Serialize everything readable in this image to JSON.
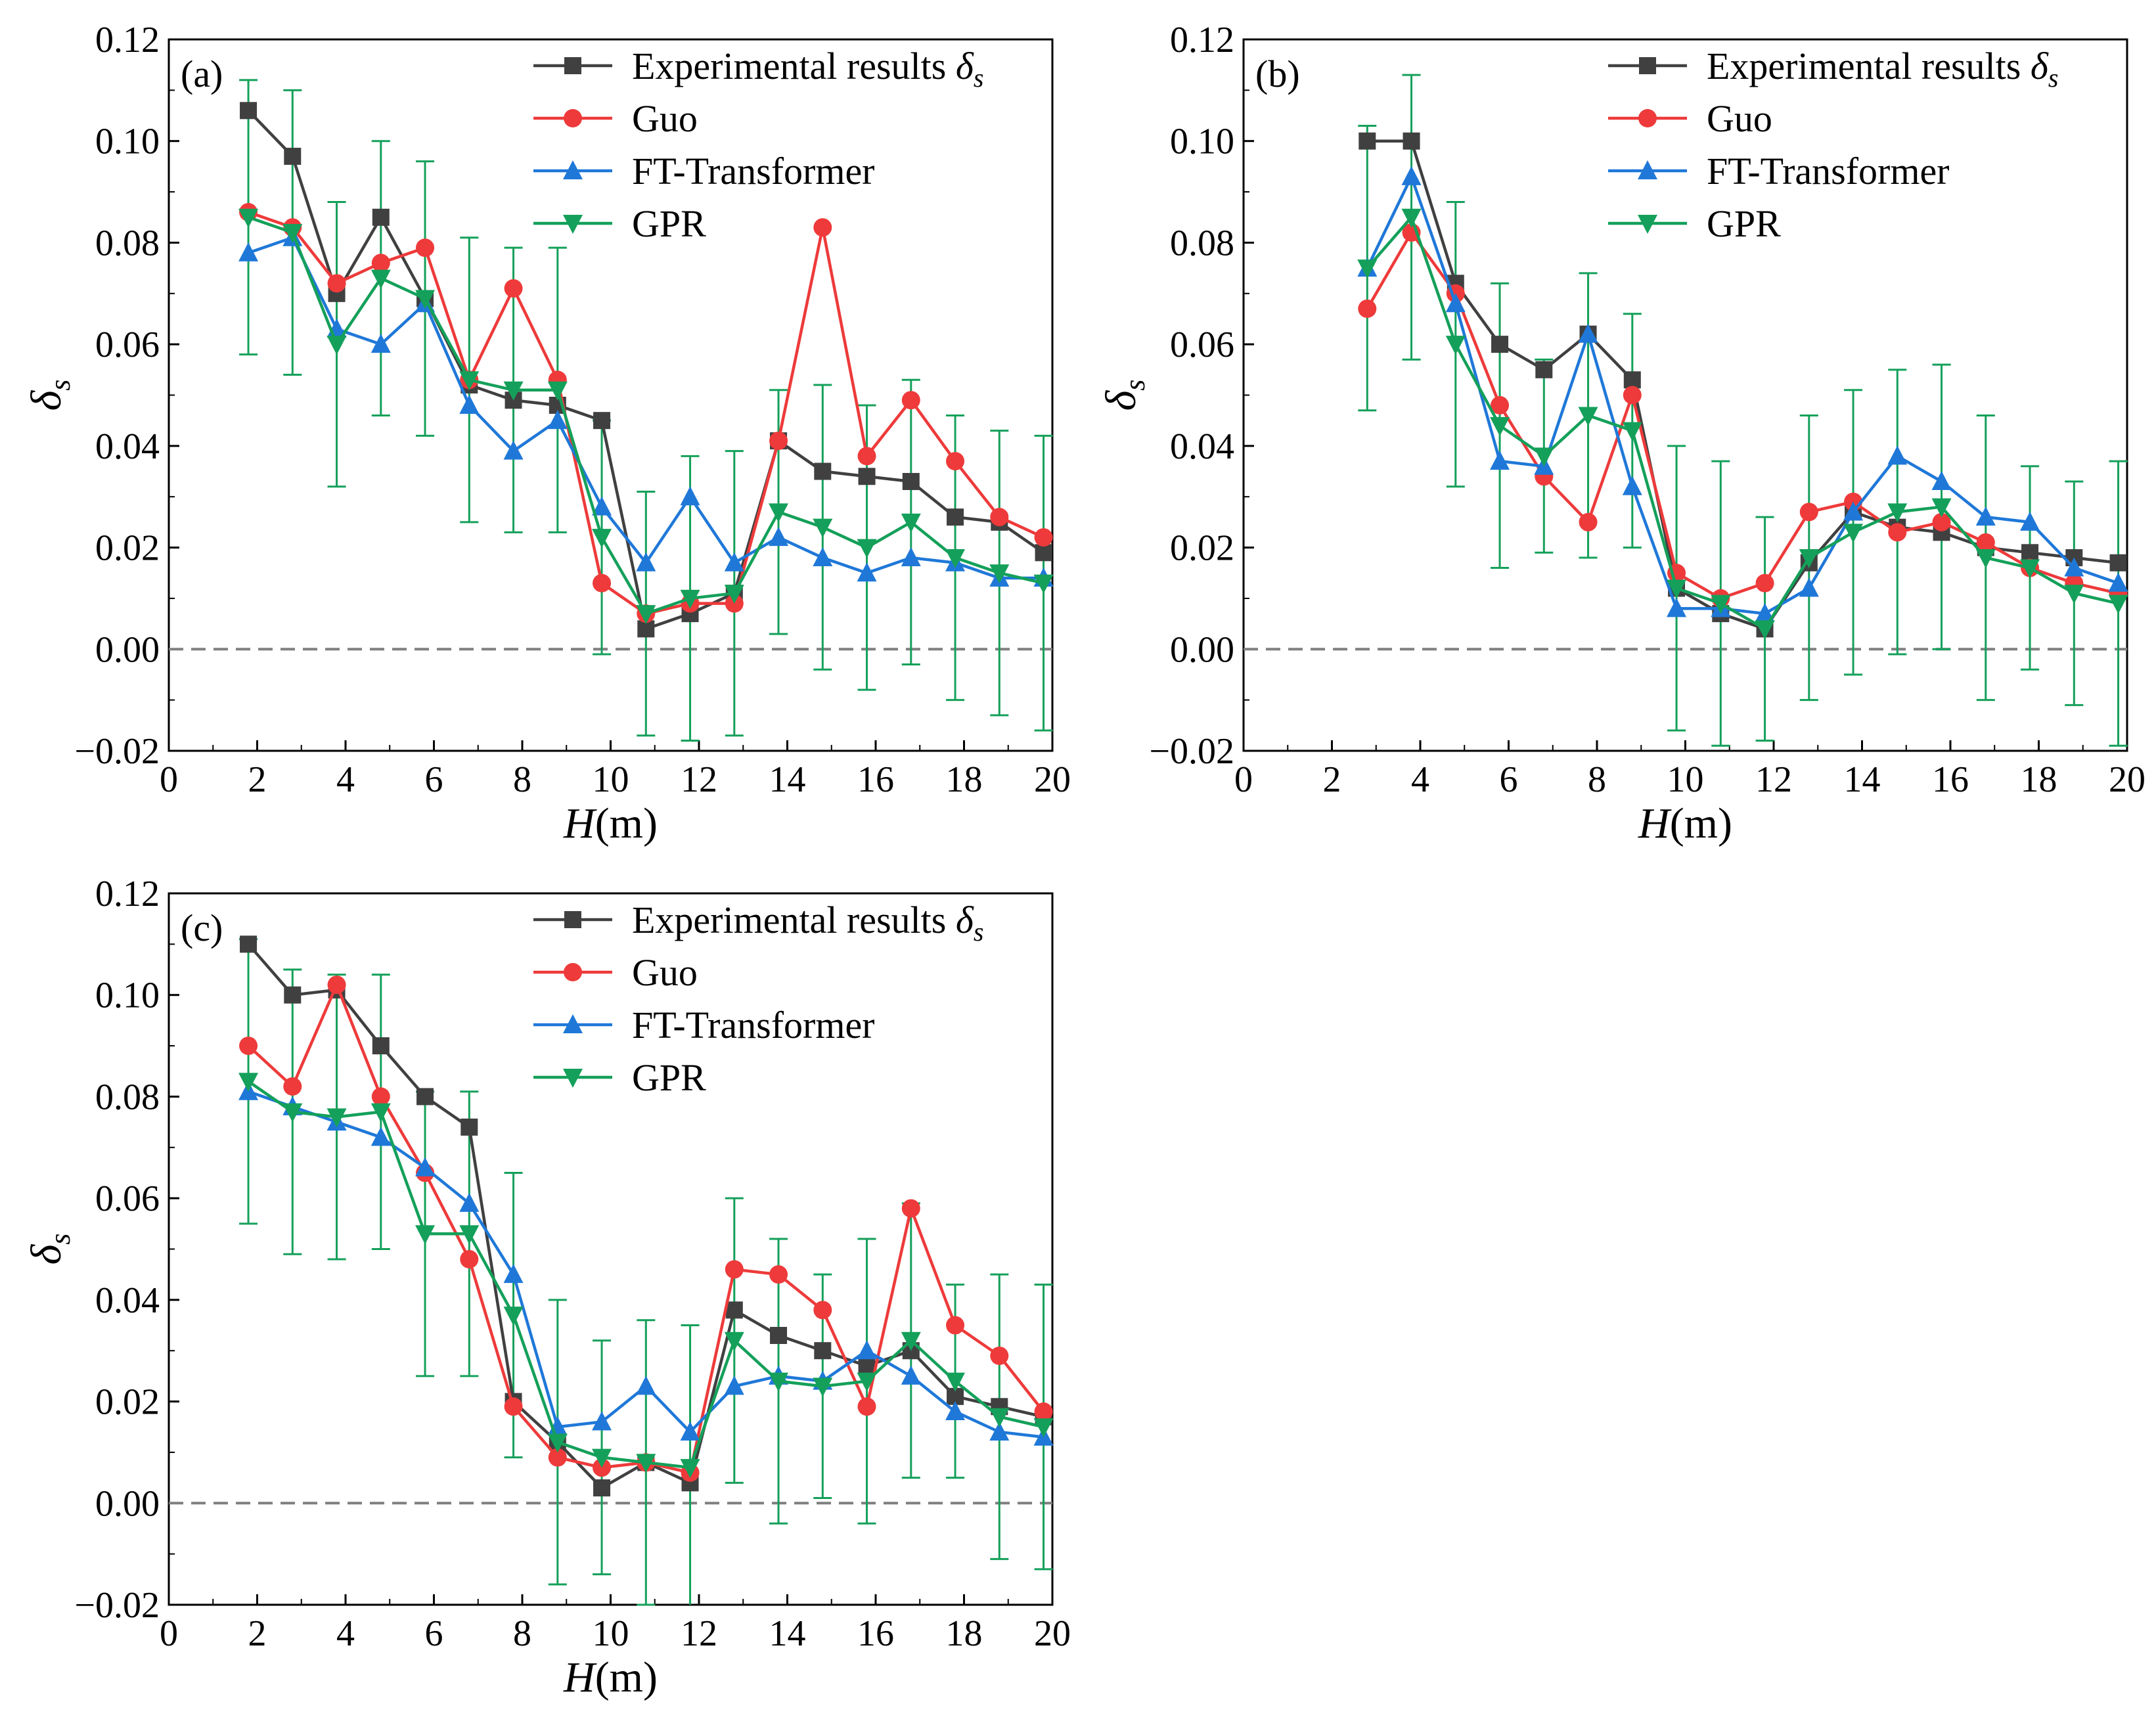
{
  "colors": {
    "Experimental results": "#404040",
    "Guo": "#ee3a3a",
    "FT-Transformer": "#1f78d8",
    "GPR": "#14a05a",
    "zero_line": "#808080"
  },
  "chart_data": [
    {
      "type": "line",
      "panel_label": "(a)",
      "xlabel_italic": "H",
      "xlabel_unit": "(m)",
      "ylabel": "δs",
      "xlim": [
        0,
        20
      ],
      "ylim": [
        -0.02,
        0.12
      ],
      "xticks": [
        "0",
        "2",
        "4",
        "6",
        "8",
        "10",
        "12",
        "14",
        "16",
        "18",
        "20"
      ],
      "yticks": [
        "−0.02",
        "0.00",
        "0.02",
        "0.04",
        "0.06",
        "0.08",
        "0.10",
        "0.12"
      ],
      "x": [
        1.8,
        2.8,
        3.8,
        4.8,
        5.8,
        6.8,
        7.8,
        8.8,
        9.8,
        10.8,
        11.8,
        12.8,
        13.8,
        14.8,
        15.8,
        16.8,
        17.8,
        18.8,
        19.8
      ],
      "series": [
        {
          "name": "Experimental results δs",
          "values": [
            0.106,
            0.097,
            0.07,
            0.085,
            0.069,
            0.052,
            0.049,
            0.048,
            0.045,
            0.004,
            0.007,
            0.011,
            0.041,
            0.035,
            0.034,
            0.033,
            0.026,
            0.025,
            0.019
          ]
        },
        {
          "name": "Guo",
          "values": [
            0.086,
            0.083,
            0.072,
            0.076,
            0.079,
            0.053,
            0.071,
            0.053,
            0.013,
            0.007,
            0.009,
            0.009,
            0.041,
            0.083,
            0.038,
            0.049,
            0.037,
            0.026,
            0.022
          ]
        },
        {
          "name": "FT-Transformer",
          "values": [
            0.078,
            0.081,
            0.063,
            0.06,
            0.068,
            0.048,
            0.039,
            0.045,
            0.028,
            0.017,
            0.03,
            0.017,
            0.022,
            0.018,
            0.015,
            0.018,
            0.017,
            0.014,
            0.014
          ]
        },
        {
          "name": "GPR",
          "values": [
            0.085,
            0.082,
            0.06,
            0.073,
            0.069,
            0.053,
            0.051,
            0.051,
            0.022,
            0.007,
            0.01,
            0.011,
            0.027,
            0.024,
            0.02,
            0.025,
            0.018,
            0.015,
            0.013
          ]
        }
      ],
      "gpr_error": [
        0.027,
        0.028,
        0.028,
        0.027,
        0.027,
        0.028,
        0.028,
        0.028,
        0.023,
        0.024,
        0.028,
        0.028,
        0.024,
        0.028,
        0.028,
        0.028,
        0.028,
        0.028,
        0.029
      ],
      "legend": [
        "Experimental results δs",
        "Guo",
        "FT-Transformer",
        "GPR"
      ]
    },
    {
      "type": "line",
      "panel_label": "(b)",
      "xlabel_italic": "H",
      "xlabel_unit": "(m)",
      "ylabel": "δs",
      "xlim": [
        0,
        20
      ],
      "ylim": [
        -0.02,
        0.12
      ],
      "xticks": [
        "0",
        "2",
        "4",
        "6",
        "8",
        "10",
        "12",
        "14",
        "16",
        "18",
        "20"
      ],
      "yticks": [
        "−0.02",
        "0.00",
        "0.02",
        "0.04",
        "0.06",
        "0.08",
        "0.10",
        "0.12"
      ],
      "x": [
        2.8,
        3.8,
        4.8,
        5.8,
        6.8,
        7.8,
        8.8,
        9.8,
        10.8,
        11.8,
        12.8,
        13.8,
        14.8,
        15.8,
        16.8,
        17.8,
        18.8,
        19.8
      ],
      "series": [
        {
          "name": "Experimental results δs",
          "values": [
            0.1,
            0.1,
            0.072,
            0.06,
            0.055,
            0.062,
            0.053,
            0.012,
            0.007,
            0.004,
            0.017,
            0.027,
            0.024,
            0.023,
            0.02,
            0.019,
            0.018,
            0.017
          ]
        },
        {
          "name": "Guo",
          "values": [
            0.067,
            0.082,
            0.07,
            0.048,
            0.034,
            0.025,
            0.05,
            0.015,
            0.01,
            0.013,
            0.027,
            0.029,
            0.023,
            0.025,
            0.021,
            0.016,
            0.013,
            0.011
          ]
        },
        {
          "name": "FT-Transformer",
          "values": [
            0.075,
            0.093,
            0.068,
            0.037,
            0.036,
            0.062,
            0.032,
            0.008,
            0.008,
            0.007,
            0.012,
            0.027,
            0.038,
            0.033,
            0.026,
            0.025,
            0.016,
            0.013
          ]
        },
        {
          "name": "GPR",
          "values": [
            0.075,
            0.085,
            0.06,
            0.044,
            0.038,
            0.046,
            0.043,
            0.012,
            0.009,
            0.004,
            0.018,
            0.023,
            0.027,
            0.028,
            0.018,
            0.016,
            0.011,
            0.009
          ]
        }
      ],
      "gpr_error": [
        0.028,
        0.028,
        0.028,
        0.028,
        0.019,
        0.028,
        0.023,
        0.028,
        0.028,
        0.022,
        0.028,
        0.028,
        0.028,
        0.028,
        0.028,
        0.02,
        0.022,
        0.028
      ],
      "legend": [
        "Experimental results δs",
        "Guo",
        "FT-Transformer",
        "GPR"
      ]
    },
    {
      "type": "line",
      "panel_label": "(c)",
      "xlabel_italic": "H",
      "xlabel_unit": "(m)",
      "ylabel": "δs",
      "xlim": [
        0,
        20
      ],
      "ylim": [
        -0.02,
        0.12
      ],
      "xticks": [
        "0",
        "2",
        "4",
        "6",
        "8",
        "10",
        "12",
        "14",
        "16",
        "18",
        "20"
      ],
      "yticks": [
        "−0.02",
        "0.00",
        "0.02",
        "0.04",
        "0.06",
        "0.08",
        "0.10",
        "0.12"
      ],
      "x": [
        1.8,
        2.8,
        3.8,
        4.8,
        5.8,
        6.8,
        7.8,
        8.8,
        9.8,
        10.8,
        11.8,
        12.8,
        13.8,
        14.8,
        15.8,
        16.8,
        17.8,
        18.8,
        19.8
      ],
      "series": [
        {
          "name": "Experimental results δs",
          "values": [
            0.11,
            0.1,
            0.101,
            0.09,
            0.08,
            0.074,
            0.02,
            0.012,
            0.003,
            0.008,
            0.004,
            0.038,
            0.033,
            0.03,
            0.027,
            0.03,
            0.021,
            0.019,
            0.017
          ]
        },
        {
          "name": "Guo",
          "values": [
            0.09,
            0.082,
            0.102,
            0.08,
            0.065,
            0.048,
            0.019,
            0.009,
            0.007,
            0.008,
            0.006,
            0.046,
            0.045,
            0.038,
            0.019,
            0.058,
            0.035,
            0.029,
            0.018
          ]
        },
        {
          "name": "FT-Transformer",
          "values": [
            0.081,
            0.078,
            0.075,
            0.072,
            0.066,
            0.059,
            0.045,
            0.015,
            0.016,
            0.023,
            0.014,
            0.023,
            0.025,
            0.024,
            0.03,
            0.025,
            0.018,
            0.014,
            0.013
          ]
        },
        {
          "name": "GPR",
          "values": [
            0.083,
            0.077,
            0.076,
            0.077,
            0.053,
            0.053,
            0.037,
            0.012,
            0.009,
            0.008,
            0.007,
            0.032,
            0.024,
            0.023,
            0.024,
            0.032,
            0.024,
            0.017,
            0.015
          ]
        }
      ],
      "gpr_error": [
        0.028,
        0.028,
        0.028,
        0.027,
        0.028,
        0.028,
        0.028,
        0.028,
        0.023,
        0.028,
        0.028,
        0.028,
        0.028,
        0.022,
        0.028,
        0.027,
        0.019,
        0.028,
        0.028
      ],
      "legend": [
        "Experimental results δs",
        "Guo",
        "FT-Transformer",
        "GPR"
      ]
    }
  ]
}
